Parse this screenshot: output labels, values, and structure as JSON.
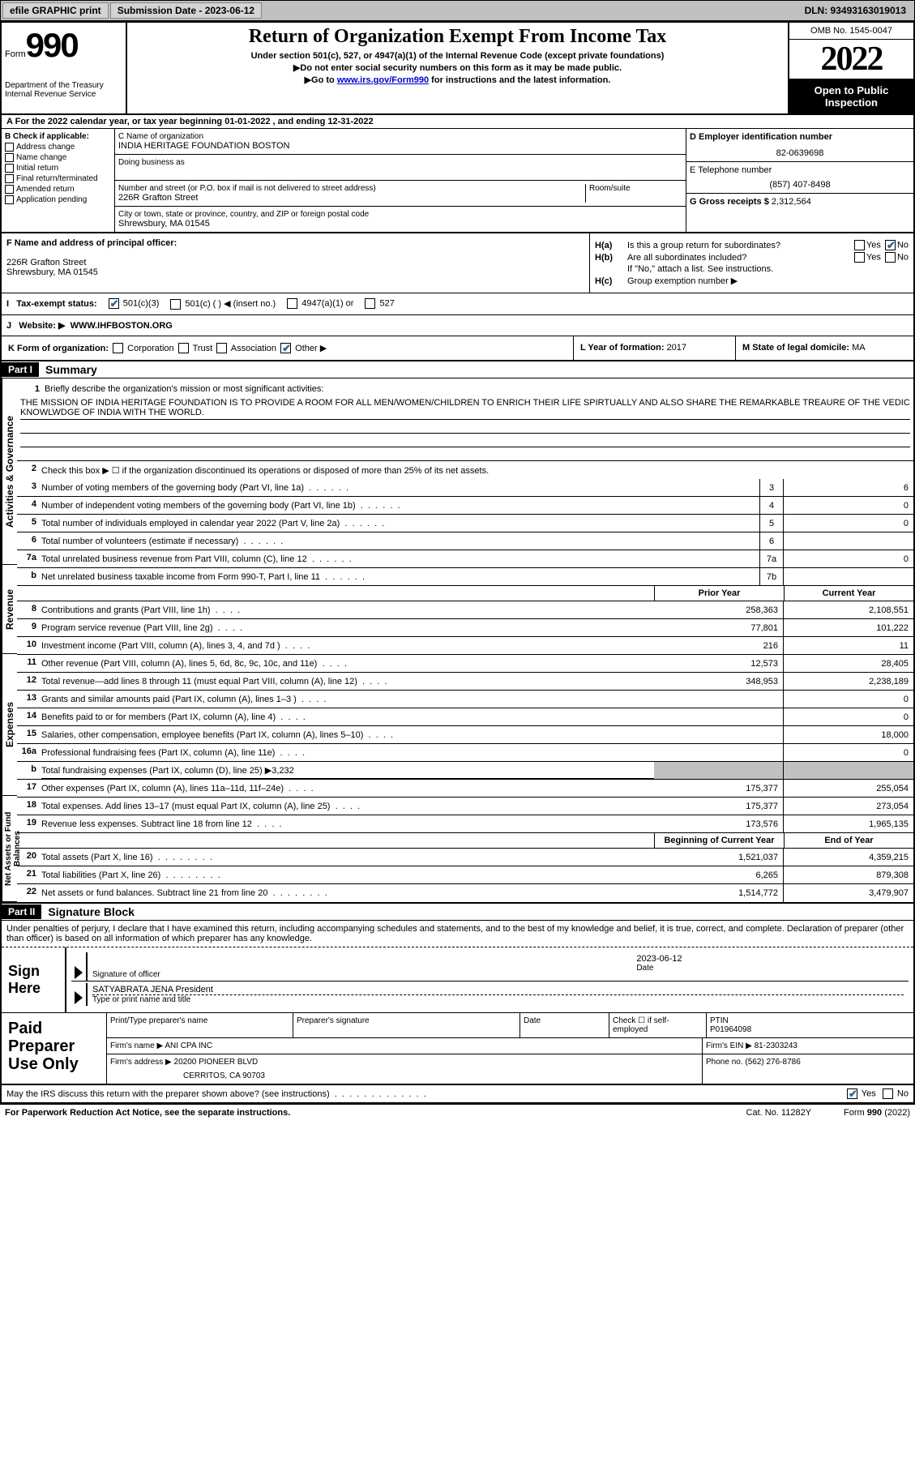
{
  "toolbar": {
    "efile": "efile GRAPHIC print",
    "submission": "Submission Date - 2023-06-12",
    "dln": "DLN: 93493163019013"
  },
  "header": {
    "form_prefix": "Form",
    "form_number": "990",
    "dept": "Department of the Treasury\nInternal Revenue Service",
    "title": "Return of Organization Exempt From Income Tax",
    "subtitle": "Under section 501(c), 527, or 4947(a)(1) of the Internal Revenue Code (except private foundations)",
    "instruct1": "Do not enter social security numbers on this form as it may be made public.",
    "instruct2_prefix": "Go to ",
    "instruct2_link": "www.irs.gov/Form990",
    "instruct2_suffix": " for instructions and the latest information.",
    "omb": "OMB No. 1545-0047",
    "year": "2022",
    "open": "Open to Public Inspection"
  },
  "section_a": "For the 2022 calendar year, or tax year beginning 01-01-2022    , and ending 12-31-2022",
  "section_b": {
    "label": "B Check if applicable:",
    "items": [
      "Address change",
      "Name change",
      "Initial return",
      "Final return/terminated",
      "Amended return",
      "Application pending"
    ]
  },
  "section_c": {
    "name_label": "C Name of organization",
    "name": "INDIA HERITAGE FOUNDATION BOSTON",
    "dba_label": "Doing business as",
    "dba": "",
    "street_label": "Number and street (or P.O. box if mail is not delivered to street address)",
    "street": "226R Grafton Street",
    "room_label": "Room/suite",
    "city_label": "City or town, state or province, country, and ZIP or foreign postal code",
    "city": "Shrewsbury, MA  01545"
  },
  "section_d": {
    "ein_label": "D Employer identification number",
    "ein": "82-0639698",
    "phone_label": "E Telephone number",
    "phone": "(857) 407-8498",
    "gross_label": "G Gross receipts $ ",
    "gross": "2,312,564"
  },
  "section_f": {
    "label": "F  Name and address of principal officer:",
    "name": "",
    "addr1": "226R Grafton Street",
    "addr2": "Shrewsbury, MA  01545"
  },
  "section_h": {
    "ha_label": "H(a)",
    "ha_text": "Is this a group return for subordinates?",
    "ha_no": true,
    "hb_label": "H(b)",
    "hb_text": "Are all subordinates included?",
    "hb_note": "If \"No,\" attach a list. See instructions.",
    "hc_label": "H(c)",
    "hc_text": "Group exemption number ▶"
  },
  "section_i": {
    "label": "Tax-exempt status:",
    "opt1": "501(c)(3)",
    "opt2": "501(c) (  ) ◀ (insert no.)",
    "opt3": "4947(a)(1) or",
    "opt4": "527"
  },
  "section_j": {
    "label": "Website: ▶",
    "value": "WWW.IHFBOSTON.ORG"
  },
  "section_k": {
    "label": "K Form of organization:",
    "opts": [
      "Corporation",
      "Trust",
      "Association",
      "Other ▶"
    ],
    "l_label": "L Year of formation: ",
    "l_val": "2017",
    "m_label": "M State of legal domicile: ",
    "m_val": "MA"
  },
  "part1": {
    "tag": "Part I",
    "title": "Summary",
    "line1_label": "Briefly describe the organization's mission or most significant activities:",
    "mission": "THE MISSION OF INDIA HERITAGE FOUNDATION IS TO PROVIDE A ROOM FOR ALL MEN/WOMEN/CHILDREN TO ENRICH THEIR LIFE SPIRTUALLY AND ALSO SHARE THE REMARKABLE TREAURE OF THE VEDIC KNOWLWDGE OF INDIA WITH THE WORLD.",
    "line2": "Check this box ▶ ☐  if the organization discontinued its operations or disposed of more than 25% of its net assets.",
    "vert1": "Activities & Governance",
    "vert2": "Revenue",
    "vert3": "Expenses",
    "vert4": "Net Assets or Fund Balances",
    "prior": "Prior Year",
    "current": "Current Year",
    "begin": "Beginning of Current Year",
    "end": "End of Year",
    "lines_gov": [
      {
        "n": "3",
        "t": "Number of voting members of the governing body (Part VI, line 1a)",
        "box": "3",
        "v": "6"
      },
      {
        "n": "4",
        "t": "Number of independent voting members of the governing body (Part VI, line 1b)",
        "box": "4",
        "v": "0"
      },
      {
        "n": "5",
        "t": "Total number of individuals employed in calendar year 2022 (Part V, line 2a)",
        "box": "5",
        "v": "0"
      },
      {
        "n": "6",
        "t": "Total number of volunteers (estimate if necessary)",
        "box": "6",
        "v": ""
      },
      {
        "n": "7a",
        "t": "Total unrelated business revenue from Part VIII, column (C), line 12",
        "box": "7a",
        "v": "0"
      },
      {
        "n": "b",
        "t": "Net unrelated business taxable income from Form 990-T, Part I, line 11",
        "box": "7b",
        "v": ""
      }
    ],
    "lines_rev": [
      {
        "n": "8",
        "t": "Contributions and grants (Part VIII, line 1h)",
        "p": "258,363",
        "c": "2,108,551"
      },
      {
        "n": "9",
        "t": "Program service revenue (Part VIII, line 2g)",
        "p": "77,801",
        "c": "101,222"
      },
      {
        "n": "10",
        "t": "Investment income (Part VIII, column (A), lines 3, 4, and 7d )",
        "p": "216",
        "c": "11"
      },
      {
        "n": "11",
        "t": "Other revenue (Part VIII, column (A), lines 5, 6d, 8c, 9c, 10c, and 11e)",
        "p": "12,573",
        "c": "28,405"
      },
      {
        "n": "12",
        "t": "Total revenue—add lines 8 through 11 (must equal Part VIII, column (A), line 12)",
        "p": "348,953",
        "c": "2,238,189"
      }
    ],
    "lines_exp": [
      {
        "n": "13",
        "t": "Grants and similar amounts paid (Part IX, column (A), lines 1–3 )",
        "p": "",
        "c": "0"
      },
      {
        "n": "14",
        "t": "Benefits paid to or for members (Part IX, column (A), line 4)",
        "p": "",
        "c": "0"
      },
      {
        "n": "15",
        "t": "Salaries, other compensation, employee benefits (Part IX, column (A), lines 5–10)",
        "p": "",
        "c": "18,000"
      },
      {
        "n": "16a",
        "t": "Professional fundraising fees (Part IX, column (A), line 11e)",
        "p": "",
        "c": "0"
      },
      {
        "n": "b",
        "t": "Total fundraising expenses (Part IX, column (D), line 25) ▶3,232",
        "grey": true
      },
      {
        "n": "17",
        "t": "Other expenses (Part IX, column (A), lines 11a–11d, 11f–24e)",
        "p": "175,377",
        "c": "255,054"
      },
      {
        "n": "18",
        "t": "Total expenses. Add lines 13–17 (must equal Part IX, column (A), line 25)",
        "p": "175,377",
        "c": "273,054"
      },
      {
        "n": "19",
        "t": "Revenue less expenses. Subtract line 18 from line 12",
        "p": "173,576",
        "c": "1,965,135"
      }
    ],
    "lines_net": [
      {
        "n": "20",
        "t": "Total assets (Part X, line 16)",
        "p": "1,521,037",
        "c": "4,359,215"
      },
      {
        "n": "21",
        "t": "Total liabilities (Part X, line 26)",
        "p": "6,265",
        "c": "879,308"
      },
      {
        "n": "22",
        "t": "Net assets or fund balances. Subtract line 21 from line 20",
        "p": "1,514,772",
        "c": "3,479,907"
      }
    ]
  },
  "part2": {
    "tag": "Part II",
    "title": "Signature Block",
    "declaration": "Under penalties of perjury, I declare that I have examined this return, including accompanying schedules and statements, and to the best of my knowledge and belief, it is true, correct, and complete. Declaration of preparer (other than officer) is based on all information of which preparer has any knowledge.",
    "sign_here": "Sign Here",
    "sig_officer": "Signature of officer",
    "sig_date": "2023-06-12",
    "sig_date_label": "Date",
    "sig_name": "SATYABRATA JENA  President",
    "sig_name_label": "Type or print name and title",
    "paid": "Paid Preparer Use Only",
    "prep_name_label": "Print/Type preparer's name",
    "prep_sig_label": "Preparer's signature",
    "prep_date_label": "Date",
    "prep_check": "Check ☐ if self-employed",
    "ptin_label": "PTIN",
    "ptin": "P01964098",
    "firm_name_label": "Firm's name    ▶ ",
    "firm_name": "ANI CPA INC",
    "firm_ein_label": "Firm's EIN ▶ ",
    "firm_ein": "81-2303243",
    "firm_addr_label": "Firm's address ▶ ",
    "firm_addr1": "20200 PIONEER BLVD",
    "firm_addr2": "CERRITOS, CA  90703",
    "firm_phone_label": "Phone no. ",
    "firm_phone": "(562) 276-8786"
  },
  "footer": {
    "discuss": "May the IRS discuss this return with the preparer shown above? (see instructions)",
    "yes": "Yes",
    "no": "No",
    "paperwork": "For Paperwork Reduction Act Notice, see the separate instructions.",
    "cat": "Cat. No. 11282Y",
    "form": "Form 990 (2022)"
  }
}
